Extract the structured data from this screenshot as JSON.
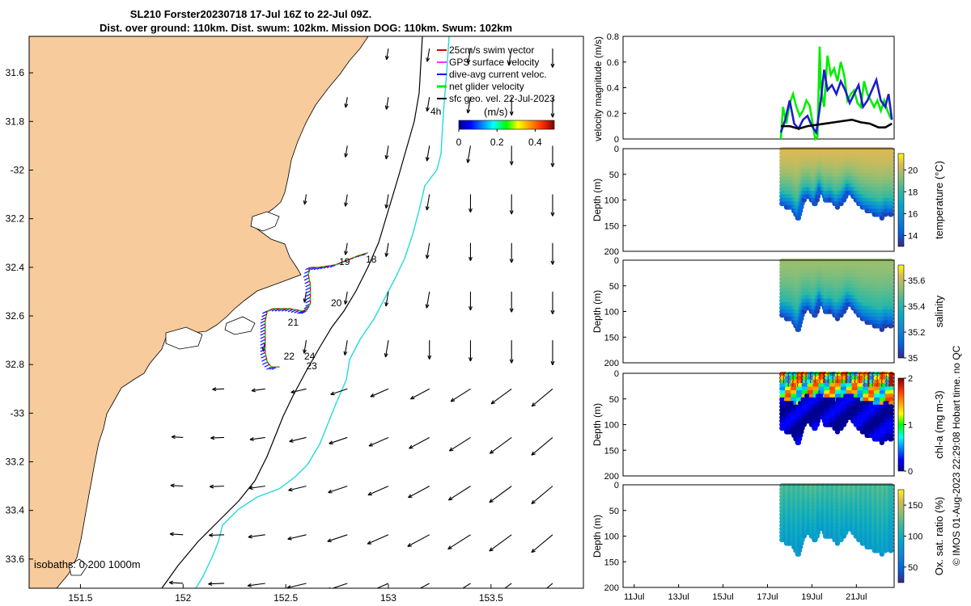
{
  "title": {
    "line1": "SL210 Forster20230718 17-Jul 16Z to 22-Jul 09Z.",
    "line2": "Dist. over ground: 110km. Dist. swum: 102km. Mission DOG: 110km. Swum: 102km"
  },
  "credit": "© IMOS 01-Aug-2023 22:29:08 Hobart time. no QC",
  "colors": {
    "land": "#f8cb9c",
    "coast_fill": "#f8cb9c",
    "isobath_200": "#000000",
    "isobath_1000": "#22dada",
    "track_blue": "#1a1aff",
    "track_green": "#00ee00",
    "velocity_blue": "#1c1ccc",
    "velocity_green": "#1ee01e",
    "velocity_black": "#000000"
  },
  "chart_data": [
    {
      "type": "map",
      "name": "glider-map",
      "xticks": [
        151.5,
        152,
        152.5,
        153,
        153.5
      ],
      "xtick_labels": [
        "151.5",
        "152",
        "152.5",
        "153",
        "153.5"
      ],
      "yticks": [
        31.6,
        31.8,
        32,
        32.2,
        32.4,
        32.6,
        32.8,
        33,
        33.2,
        33.4,
        33.6
      ],
      "ytick_labels": [
        "31.6",
        "31.8",
        "-32",
        "32.2",
        "32.4",
        "32.6",
        "32.8",
        "-33",
        "33.2",
        "33.4",
        "33.6"
      ],
      "xlim": [
        151.25,
        153.95
      ],
      "ylim": [
        -33.72,
        -31.45
      ],
      "legend": {
        "placement": "top-right",
        "entries": [
          {
            "label": "25cm/s swim vector",
            "color": "#dd0000"
          },
          {
            "label": "GPS surface velocity",
            "color": "#ff33ff"
          },
          {
            "label": "dive-avg current veloc.",
            "color": "#0000ff"
          },
          {
            "label": "net glider velocity",
            "color": "#00ee00"
          },
          {
            "label": "sfc geo. vel. 22-Jul-2023",
            "color": "#000000"
          }
        ]
      },
      "annotation_4h": "4h",
      "colorbar": {
        "label": "(m/s)",
        "ticks": [
          0,
          0.2,
          0.4
        ],
        "tick_labels": [
          "0",
          "0.2",
          "0.4"
        ],
        "range": [
          0,
          0.5
        ]
      },
      "isobaths_label": "isobaths: 0   200  1000m",
      "day_labels": [
        {
          "text": "18",
          "lon": 152.89,
          "lat": -32.38
        },
        {
          "text": "19",
          "lon": 152.76,
          "lat": -32.39
        },
        {
          "text": "20",
          "lon": 152.72,
          "lat": -32.56
        },
        {
          "text": "21",
          "lon": 152.51,
          "lat": -32.64
        },
        {
          "text": "22",
          "lon": 152.49,
          "lat": -32.78
        },
        {
          "text": "24",
          "lon": 152.59,
          "lat": -32.78
        },
        {
          "text": "23",
          "lon": 152.6,
          "lat": -32.82
        }
      ],
      "track": [
        [
          152.9,
          -32.34
        ],
        [
          152.86,
          -32.35
        ],
        [
          152.8,
          -32.37
        ],
        [
          152.74,
          -32.39
        ],
        [
          152.66,
          -32.4
        ],
        [
          152.62,
          -32.4
        ],
        [
          152.61,
          -32.43
        ],
        [
          152.62,
          -32.47
        ],
        [
          152.62,
          -32.51
        ],
        [
          152.62,
          -32.55
        ],
        [
          152.6,
          -32.58
        ],
        [
          152.58,
          -32.58
        ],
        [
          152.52,
          -32.57
        ],
        [
          152.44,
          -32.57
        ],
        [
          152.41,
          -32.58
        ],
        [
          152.4,
          -32.62
        ],
        [
          152.4,
          -32.67
        ],
        [
          152.4,
          -32.71
        ],
        [
          152.4,
          -32.75
        ],
        [
          152.41,
          -32.79
        ],
        [
          152.43,
          -32.81
        ],
        [
          152.47,
          -32.81
        ]
      ],
      "surface_vectors": {
        "lons": [
          152.0,
          152.2,
          152.4,
          152.6,
          152.8,
          153.0,
          153.2,
          153.4,
          153.6,
          153.8
        ],
        "lats": [
          -31.5,
          -31.7,
          -31.9,
          -32.1,
          -32.3,
          -32.5,
          -32.7,
          -32.9,
          -33.1,
          -33.3,
          -33.5,
          -33.7
        ]
      }
    },
    {
      "type": "line",
      "name": "velocity-magnitude",
      "ylabel": "velocity magnitude (m/s)",
      "ylim": [
        0,
        0.8
      ],
      "yticks": [
        0,
        0.2,
        0.4,
        0.6,
        0.8
      ],
      "xlim": [
        10.5,
        22.7
      ],
      "series": [
        {
          "color": "#00ee00",
          "x": [
            17.6,
            17.7,
            17.85,
            18.0,
            18.15,
            18.3,
            18.45,
            18.6,
            18.75,
            18.9,
            19.05,
            19.15,
            19.25,
            19.35,
            19.4,
            19.55,
            19.7,
            19.85,
            20.0,
            20.15,
            20.3,
            20.45,
            20.6,
            20.75,
            20.9,
            21.05,
            21.2,
            21.35,
            21.5,
            21.65,
            21.8,
            21.95,
            22.1,
            22.25,
            22.4,
            22.5,
            22.6
          ],
          "y": [
            0.0,
            0.25,
            0.12,
            0.28,
            0.35,
            0.25,
            0.18,
            0.22,
            0.3,
            0.26,
            0.1,
            0.0,
            0.02,
            0.72,
            0.4,
            0.25,
            0.65,
            0.5,
            0.55,
            0.45,
            0.6,
            0.5,
            0.3,
            0.35,
            0.38,
            0.28,
            0.25,
            0.45,
            0.35,
            0.3,
            0.25,
            0.3,
            0.22,
            0.3,
            0.22,
            0.18,
            0.15
          ]
        },
        {
          "color": "#1c1ccc",
          "x": [
            17.6,
            17.8,
            18.0,
            18.2,
            18.4,
            18.6,
            18.8,
            19.0,
            19.2,
            19.4,
            19.55,
            19.7,
            19.9,
            20.1,
            20.3,
            20.5,
            20.7,
            20.9,
            21.1,
            21.3,
            21.5,
            21.7,
            21.9,
            22.1,
            22.3,
            22.45,
            22.6
          ],
          "y": [
            0.05,
            0.15,
            0.3,
            0.12,
            0.08,
            0.15,
            0.18,
            0.1,
            0.05,
            0.3,
            0.54,
            0.38,
            0.42,
            0.35,
            0.45,
            0.38,
            0.28,
            0.35,
            0.42,
            0.25,
            0.3,
            0.38,
            0.46,
            0.3,
            0.25,
            0.35,
            0.15
          ]
        },
        {
          "color": "#000000",
          "x": [
            17.6,
            18.0,
            18.4,
            18.8,
            19.2,
            19.6,
            20.0,
            20.4,
            20.8,
            21.2,
            21.6,
            22.0,
            22.3,
            22.6
          ],
          "y": [
            0.1,
            0.1,
            0.08,
            0.1,
            0.11,
            0.12,
            0.13,
            0.14,
            0.15,
            0.13,
            0.12,
            0.09,
            0.09,
            0.12
          ]
        }
      ]
    },
    {
      "type": "heatmap",
      "name": "temperature-section",
      "ylabel": "Depth (m)",
      "cbar_label": "temperature (°C)",
      "ylim": [
        200,
        0
      ],
      "yticks": [
        0,
        50,
        100,
        150,
        200
      ],
      "cbar_ticks": [
        14,
        16,
        18,
        20
      ],
      "cbar_range": [
        13,
        21.5
      ],
      "xlim": [
        10.5,
        22.7
      ],
      "x": [
        17.65,
        17.9,
        18.15,
        18.4,
        18.65,
        18.9,
        19.15,
        19.4,
        19.65,
        19.9,
        20.15,
        20.4,
        20.65,
        20.9,
        21.15,
        21.4,
        21.65,
        21.9,
        22.15,
        22.4,
        22.6
      ],
      "max_depth": [
        110,
        115,
        120,
        140,
        100,
        95,
        110,
        80,
        105,
        100,
        115,
        105,
        85,
        95,
        110,
        120,
        125,
        130,
        135,
        125,
        130
      ],
      "surface_value": 20.5,
      "deep_value": 16.5
    },
    {
      "type": "heatmap",
      "name": "salinity-section",
      "ylabel": "Depth (m)",
      "cbar_label": "salinity",
      "ylim": [
        200,
        0
      ],
      "yticks": [
        0,
        50,
        100,
        150,
        200
      ],
      "cbar_ticks": [
        35,
        35.2,
        35.4,
        35.6
      ],
      "cbar_range": [
        35.0,
        35.72
      ],
      "xlim": [
        10.5,
        22.7
      ],
      "x": [
        17.65,
        17.9,
        18.15,
        18.4,
        18.65,
        18.9,
        19.15,
        19.4,
        19.65,
        19.9,
        20.15,
        20.4,
        20.65,
        20.9,
        21.15,
        21.4,
        21.65,
        21.9,
        22.15,
        22.4,
        22.6
      ],
      "max_depth": [
        110,
        115,
        120,
        140,
        100,
        95,
        110,
        80,
        105,
        100,
        115,
        105,
        85,
        95,
        110,
        120,
        125,
        130,
        135,
        125,
        130
      ],
      "surface_value": 35.55,
      "deep_value": 35.3
    },
    {
      "type": "heatmap",
      "name": "chla-section",
      "ylabel": "Depth (m)",
      "cbar_label": "chl-a (mg m-3)",
      "ylim": [
        200,
        0
      ],
      "yticks": [
        0,
        50,
        100,
        150,
        200
      ],
      "cbar_ticks": [
        0,
        1,
        2
      ],
      "cbar_range": [
        0,
        2
      ],
      "xlim": [
        10.5,
        22.7
      ],
      "x": [
        17.65,
        17.9,
        18.15,
        18.4,
        18.65,
        18.9,
        19.15,
        19.4,
        19.65,
        19.9,
        20.15,
        20.4,
        20.65,
        20.9,
        21.15,
        21.4,
        21.65,
        21.9,
        22.15,
        22.4,
        22.6
      ],
      "max_depth": [
        110,
        115,
        120,
        140,
        100,
        95,
        110,
        80,
        105,
        100,
        115,
        105,
        85,
        95,
        110,
        120,
        125,
        130,
        135,
        125,
        130
      ],
      "surface_value": 1.2,
      "deep_value": 0.1
    },
    {
      "type": "heatmap",
      "name": "oxygen-section",
      "ylabel": "Depth (m)",
      "cbar_label": "Ox. sat. ratio (%)",
      "ylim": [
        200,
        0
      ],
      "yticks": [
        0,
        50,
        100,
        150,
        200
      ],
      "cbar_ticks": [
        50,
        100,
        150
      ],
      "cbar_range": [
        25,
        175
      ],
      "xlim": [
        10.5,
        22.7
      ],
      "x": [
        17.65,
        17.9,
        18.15,
        18.4,
        18.65,
        18.9,
        19.15,
        19.4,
        19.65,
        19.9,
        20.15,
        20.4,
        20.65,
        20.9,
        21.15,
        21.4,
        21.65,
        21.9,
        22.15,
        22.4,
        22.6
      ],
      "max_depth": [
        110,
        115,
        120,
        140,
        100,
        95,
        110,
        80,
        105,
        100,
        115,
        105,
        85,
        95,
        110,
        120,
        125,
        130,
        135,
        125,
        130
      ],
      "surface_value": 118,
      "deep_value": 95,
      "xticks": [
        11,
        13,
        15,
        17,
        19,
        21
      ],
      "xtick_labels": [
        "11Jul",
        "13Jul",
        "15Jul",
        "17Jul",
        "19Jul",
        "21Jul"
      ]
    }
  ]
}
